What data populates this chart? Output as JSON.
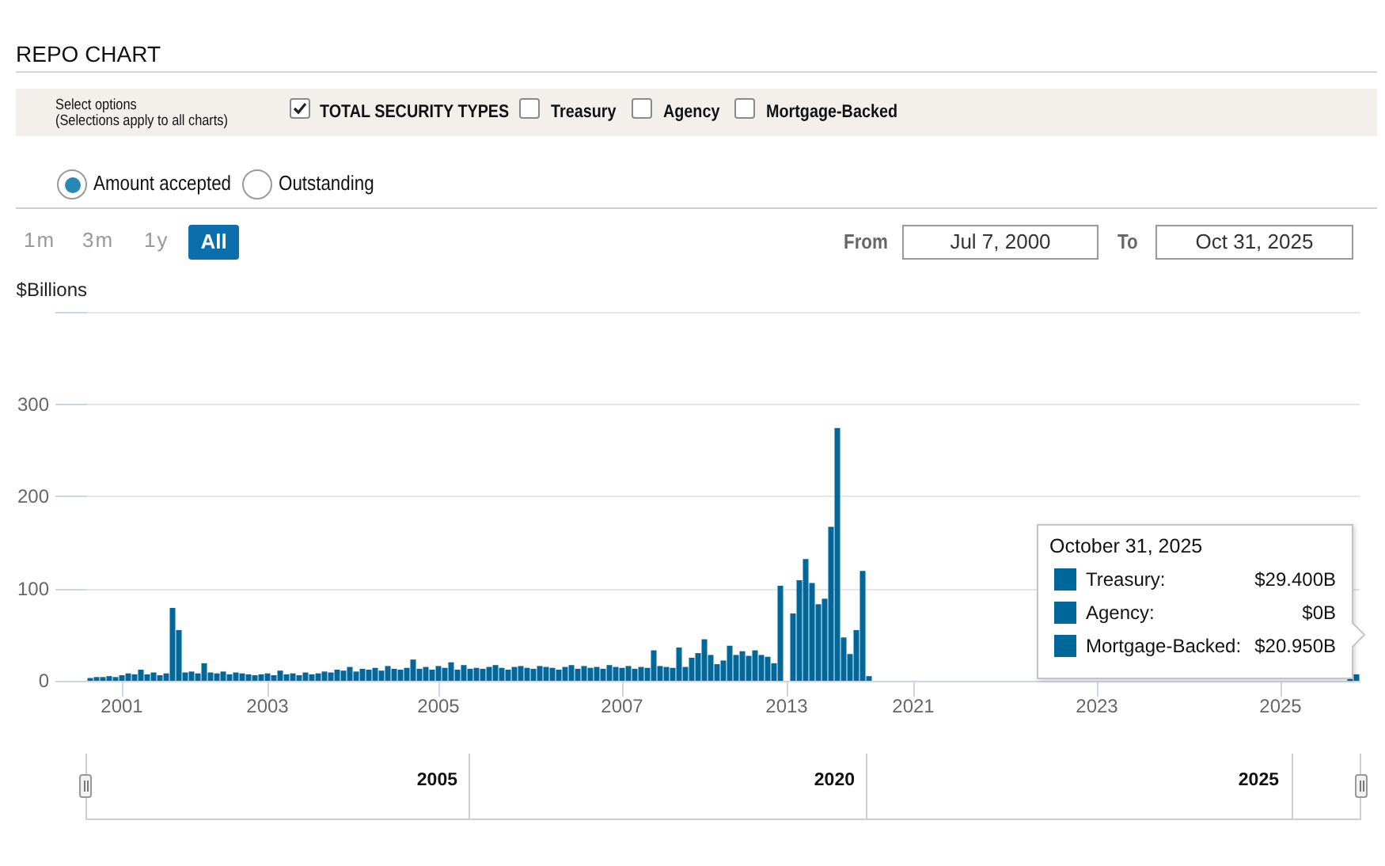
{
  "chart_data": {
    "type": "bar",
    "title": "REPO CHART",
    "ylabel": "$Billions",
    "annotations": [
      "Select options",
      "(Selections apply to all charts)",
      "TOTAL SECURITY TYPES",
      "Treasury",
      "Agency",
      "Mortgage-Backed",
      "Amount accepted",
      "Outstanding",
      "1m",
      "3m",
      "1y",
      "All",
      "From",
      "Jul 7, 2000",
      "To",
      "Oct 31, 2025",
      "October 31, 2025",
      "Treasury:",
      "$29.400B",
      "Agency:",
      "$0B",
      "Mortgage-Backed:",
      "$20.950B",
      "2005",
      "2020",
      "2025"
    ],
    "categories": [
      null,
      null,
      null,
      null,
      null,
      "2001",
      null,
      null,
      null,
      null,
      null,
      null,
      null,
      null,
      null,
      null,
      null,
      null,
      null,
      null,
      null,
      null,
      null,
      null,
      null,
      null,
      null,
      null,
      "2003",
      null,
      null,
      null,
      null,
      null,
      null,
      null,
      null,
      null,
      null,
      null,
      null,
      null,
      null,
      null,
      null,
      null,
      null,
      null,
      null,
      null,
      null,
      null,
      null,
      null,
      null,
      "2005",
      null,
      null,
      null,
      null,
      null,
      null,
      null,
      null,
      null,
      null,
      null,
      null,
      null,
      null,
      null,
      null,
      null,
      null,
      null,
      null,
      null,
      null,
      null,
      null,
      null,
      null,
      null,
      null,
      "2007",
      null,
      null,
      null,
      null,
      null,
      null,
      null,
      null,
      null,
      null,
      null,
      null,
      null,
      null,
      null,
      null,
      null,
      null,
      null,
      null,
      null,
      null,
      null,
      null,
      null,
      "2013",
      null,
      null,
      null,
      null,
      null,
      null,
      null,
      null,
      null,
      null,
      null,
      null,
      null,
      null,
      null,
      null,
      null,
      null,
      null,
      "2021",
      null,
      null,
      null,
      null,
      null,
      null,
      null,
      null,
      null,
      null,
      null,
      null,
      null,
      null,
      null,
      null,
      null,
      null,
      null,
      null,
      null,
      null,
      null,
      null,
      null,
      null,
      null,
      null,
      "2023",
      null,
      null,
      null,
      null,
      null,
      null,
      null,
      null,
      null,
      null,
      null,
      null,
      null,
      null,
      null,
      null,
      null,
      null,
      null,
      null,
      null,
      null,
      null,
      null,
      null,
      null,
      null,
      null,
      "2025",
      null,
      null,
      null,
      null,
      null,
      null,
      null,
      null,
      null,
      null,
      null,
      null
    ],
    "values": [
      3,
      4,
      4,
      5,
      4,
      6,
      8,
      7,
      12,
      7,
      9,
      6,
      8,
      79,
      55,
      9,
      10,
      8,
      19,
      9,
      8,
      10,
      7,
      9,
      8,
      7,
      6,
      7,
      8,
      6,
      11,
      7,
      8,
      6,
      9,
      7,
      8,
      10,
      9,
      12,
      11,
      15,
      10,
      13,
      12,
      14,
      11,
      16,
      13,
      12,
      14,
      23,
      13,
      15,
      12,
      16,
      14,
      20,
      12,
      17,
      13,
      14,
      13,
      15,
      17,
      14,
      12,
      15,
      16,
      14,
      13,
      16,
      15,
      14,
      12,
      15,
      17,
      13,
      16,
      14,
      15,
      13,
      17,
      15,
      14,
      16,
      13,
      15,
      14,
      33,
      16,
      15,
      14,
      36,
      15,
      25,
      30,
      45,
      28,
      18,
      22,
      38,
      28,
      32,
      27,
      33,
      28,
      26,
      19,
      103,
      0,
      73,
      109,
      132,
      106,
      83,
      89,
      167,
      274,
      47,
      29,
      55,
      119,
      5,
      0,
      0,
      0,
      0,
      0,
      0,
      0,
      0,
      0,
      0,
      0,
      0,
      0,
      0,
      0,
      0,
      0,
      0,
      0,
      0,
      0,
      0,
      0,
      0,
      0,
      0,
      0,
      0,
      0,
      0,
      0,
      0,
      0,
      0,
      0,
      0,
      0,
      0,
      0,
      0,
      0,
      0,
      0,
      0,
      0,
      0,
      0,
      0,
      0,
      0,
      0,
      0,
      0,
      0,
      0,
      0,
      0,
      0,
      0,
      0,
      0,
      0,
      0,
      0,
      0,
      0,
      0,
      0,
      0,
      0,
      0,
      0,
      0,
      0,
      0,
      2,
      7
    ],
    "color": "#00679a",
    "ylim": [
      0,
      400
    ],
    "yticks": [
      0,
      100,
      200,
      300,
      {
        "value": 400,
        "label": null
      }
    ],
    "grid": "y"
  }
}
